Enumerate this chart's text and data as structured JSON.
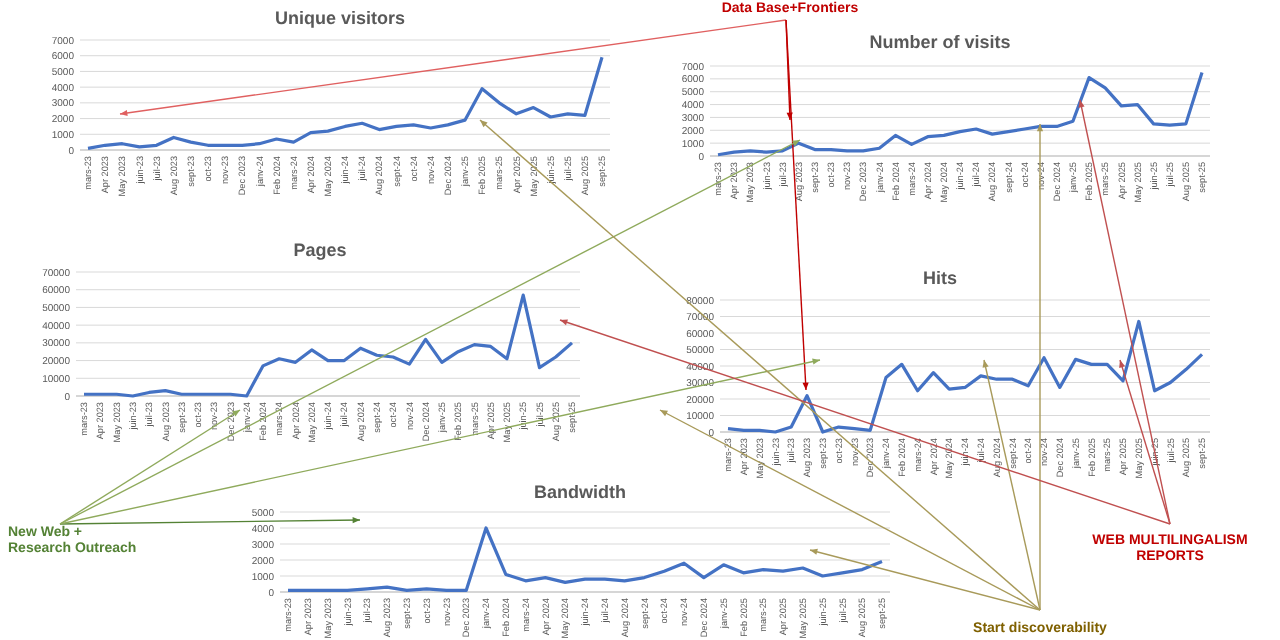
{
  "chart_data": [
    {
      "type": "line",
      "title": "Unique visitors",
      "categories": [
        "mars-23",
        "Apr 2023",
        "May 2023",
        "juin-23",
        "juil-23",
        "Aug 2023",
        "sept-23",
        "oct-23",
        "nov-23",
        "Dec 2023",
        "janv-24",
        "Feb 2024",
        "mars-24",
        "Apr 2024",
        "May 2024",
        "juin-24",
        "juil-24",
        "Aug 2024",
        "sept-24",
        "oct-24",
        "nov-24",
        "Dec 2024",
        "janv-25",
        "Feb 2025",
        "mars-25",
        "Apr 2025",
        "May 2025",
        "juin-25",
        "juil-25",
        "Aug 2025",
        "sept-25"
      ],
      "series": [
        {
          "color": "#4472c4",
          "values": [
            100,
            300,
            400,
            200,
            300,
            800,
            500,
            300,
            300,
            300,
            400,
            700,
            500,
            1100,
            1200,
            1500,
            1700,
            1300,
            1500,
            1600,
            1400,
            1600,
            1900,
            3900,
            3000,
            2300,
            2700,
            2100,
            2300,
            2200,
            5900
          ]
        }
      ],
      "ylim": [
        0,
        7000
      ],
      "yticks": [
        0,
        1000,
        2000,
        3000,
        4000,
        5000,
        6000,
        7000
      ],
      "grid": "y"
    },
    {
      "type": "line",
      "title": "Number of visits",
      "categories": [
        "mars-23",
        "Apr 2023",
        "May 2023",
        "juin-23",
        "juil-23",
        "Aug 2023",
        "sept-23",
        "oct-23",
        "nov-23",
        "Dec 2023",
        "janv-24",
        "Feb 2024",
        "mars-24",
        "Apr 2024",
        "May 2024",
        "juin-24",
        "juil-24",
        "Aug 2024",
        "sept-24",
        "oct-24",
        "nov-24",
        "Dec 2024",
        "janv-25",
        "Feb 2025",
        "mars-25",
        "Apr 2025",
        "May 2025",
        "juin-25",
        "juil-25",
        "Aug 2025",
        "sept-25"
      ],
      "series": [
        {
          "color": "#4472c4",
          "values": [
            100,
            300,
            400,
            300,
            400,
            1000,
            500,
            500,
            400,
            400,
            600,
            1600,
            900,
            1500,
            1600,
            1900,
            2100,
            1700,
            1900,
            2100,
            2300,
            2300,
            2700,
            6100,
            5300,
            3900,
            4000,
            2500,
            2400,
            2500,
            6500
          ]
        }
      ],
      "ylim": [
        0,
        7000
      ],
      "yticks": [
        0,
        1000,
        2000,
        3000,
        4000,
        5000,
        6000,
        7000
      ],
      "grid": "y"
    },
    {
      "type": "line",
      "title": "Pages",
      "categories": [
        "mars-23",
        "Apr 2023",
        "May 2023",
        "juin-23",
        "juil-23",
        "Aug 2023",
        "sept-23",
        "oct-23",
        "nov-23",
        "Dec 2023",
        "janv-24",
        "Feb 2024",
        "mars-24",
        "Apr 2024",
        "May 2024",
        "juin-24",
        "juil-24",
        "Aug 2024",
        "sept-24",
        "oct-24",
        "nov-24",
        "Dec 2024",
        "janv-25",
        "Feb 2025",
        "mars-25",
        "Apr 2025",
        "May 2025",
        "juin-25",
        "juil-25",
        "Aug 2025",
        "sept-25"
      ],
      "series": [
        {
          "color": "#4472c4",
          "values": [
            1000,
            1000,
            1000,
            0,
            2000,
            3000,
            1000,
            1000,
            1000,
            1000,
            0,
            17000,
            21000,
            19000,
            26000,
            20000,
            20000,
            27000,
            23000,
            22000,
            18000,
            32000,
            19000,
            25000,
            29000,
            28000,
            21000,
            57000,
            16000,
            22000,
            30000
          ]
        }
      ],
      "ylim": [
        0,
        70000
      ],
      "yticks": [
        0,
        10000,
        20000,
        30000,
        40000,
        50000,
        60000,
        70000
      ],
      "grid": "y"
    },
    {
      "type": "line",
      "title": "Hits",
      "categories": [
        "mars-23",
        "Apr 2023",
        "May 2023",
        "juin-23",
        "juil-23",
        "Aug 2023",
        "sept-23",
        "oct-23",
        "nov-23",
        "Dec 2023",
        "janv-24",
        "Feb 2024",
        "mars-24",
        "Apr 2024",
        "May 2024",
        "juin-24",
        "juil-24",
        "Aug 2024",
        "sept-24",
        "oct-24",
        "nov-24",
        "Dec 2024",
        "janv-25",
        "Feb 2025",
        "mars-25",
        "Apr 2025",
        "May 2025",
        "juin-25",
        "juil-25",
        "Aug 2025",
        "sept-25"
      ],
      "series": [
        {
          "color": "#4472c4",
          "values": [
            2000,
            1000,
            1000,
            0,
            3000,
            22000,
            0,
            3000,
            2000,
            1000,
            33000,
            41000,
            25000,
            36000,
            26000,
            27000,
            34000,
            32000,
            32000,
            28000,
            45000,
            27000,
            44000,
            41000,
            41000,
            31000,
            67000,
            25000,
            30000,
            38000,
            47000
          ]
        }
      ],
      "ylim": [
        0,
        80000
      ],
      "yticks": [
        0,
        10000,
        20000,
        30000,
        40000,
        50000,
        60000,
        70000,
        80000
      ],
      "grid": "y"
    },
    {
      "type": "line",
      "title": "Bandwidth",
      "categories": [
        "mars-23",
        "Apr 2023",
        "May 2023",
        "juin-23",
        "juil-23",
        "Aug 2023",
        "sept-23",
        "oct-23",
        "nov-23",
        "Dec 2023",
        "janv-24",
        "Feb 2024",
        "mars-24",
        "Apr 2024",
        "May 2024",
        "juin-24",
        "juil-24",
        "Aug 2024",
        "sept-24",
        "oct-24",
        "nov-24",
        "Dec 2024",
        "janv-25",
        "Feb 2025",
        "mars-25",
        "Apr 2025",
        "May 2025",
        "juin-25",
        "juil-25",
        "Aug 2025",
        "sept-25"
      ],
      "series": [
        {
          "color": "#4472c4",
          "values": [
            100,
            100,
            100,
            100,
            200,
            300,
            100,
            200,
            100,
            100,
            4000,
            1100,
            700,
            900,
            600,
            800,
            800,
            700,
            900,
            1300,
            1800,
            900,
            1700,
            1200,
            1400,
            1300,
            1500,
            1000,
            1200,
            1400,
            1900
          ]
        }
      ],
      "ylim": [
        0,
        5000
      ],
      "yticks": [
        0,
        1000,
        2000,
        3000,
        4000,
        5000
      ],
      "grid": "y"
    },
    {
      "type": "other",
      "annotations": [
        "Data Base+Frontiers",
        "New Web + Research Outreach",
        "Start discoverability",
        "WEB MULTILINGALISM REPORTS"
      ]
    }
  ]
}
